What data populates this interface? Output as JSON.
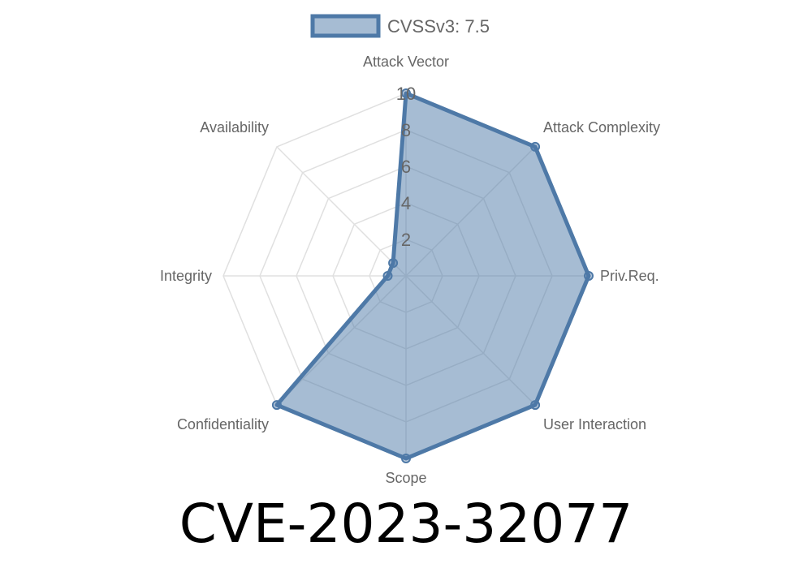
{
  "chart_data": {
    "type": "radar",
    "title": "CVE-2023-32077",
    "legend": {
      "label": "CVSSv3: 7.5",
      "placement": "top"
    },
    "axes": [
      "Attack Vector",
      "Attack Complexity",
      "Priv.Req.",
      "User Interaction",
      "Scope",
      "Confidentiality",
      "Integrity",
      "Availability"
    ],
    "series": [
      {
        "name": "CVSSv3: 7.5",
        "values": [
          10,
          10,
          10,
          10,
          10,
          10,
          1,
          1
        ]
      }
    ],
    "range": [
      0,
      10
    ],
    "ticks": [
      "2",
      "4",
      "6",
      "8",
      "10"
    ],
    "grid": true,
    "colors": {
      "stroke": "#4e79a7",
      "fill": "rgba(78,121,167,0.5)",
      "grid": "#e0e0e0",
      "label": "#666666"
    }
  }
}
